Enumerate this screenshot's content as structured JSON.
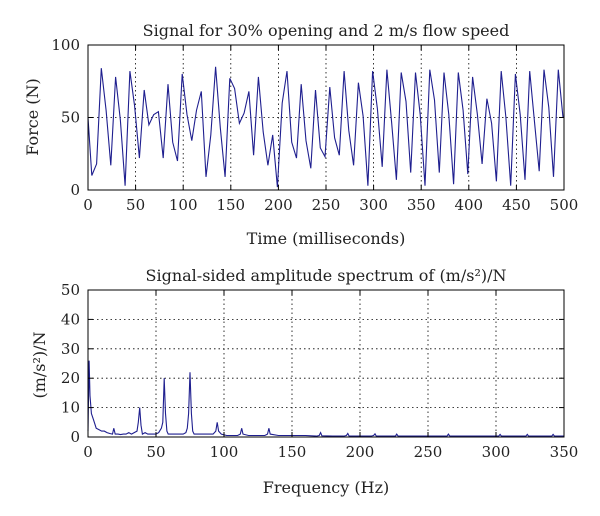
{
  "chart_data": [
    {
      "type": "line",
      "title": "Signal for 30% opening and 2 m/s flow speed",
      "xlabel": "Time (milliseconds)",
      "ylabel": "Force (N)",
      "xlim": [
        0,
        500
      ],
      "ylim": [
        0,
        100
      ],
      "xticks": [
        "0",
        "50",
        "100",
        "150",
        "200",
        "250",
        "300",
        "350",
        "400",
        "450",
        "500"
      ],
      "yticks": [
        "0",
        "50",
        "100"
      ],
      "grid": true,
      "line_color": "#1f1f8f",
      "series": [
        {
          "x": [
            0,
            4,
            9,
            14,
            19,
            24,
            29,
            34,
            39,
            44,
            49,
            54,
            59,
            64,
            69,
            74,
            79,
            84,
            89,
            94,
            99,
            104,
            109,
            114,
            119,
            124,
            129,
            134,
            139,
            144,
            149,
            154,
            159,
            164,
            169,
            174,
            179,
            184,
            189,
            194,
            199,
            204,
            209,
            214,
            219,
            224,
            229,
            234,
            239,
            244,
            249,
            254,
            259,
            264,
            269,
            274,
            279,
            284,
            289,
            294,
            299,
            304,
            309,
            314,
            319,
            324,
            329,
            334,
            339,
            344,
            349,
            354,
            359,
            364,
            369,
            374,
            379,
            384,
            389,
            394,
            399,
            404,
            409,
            414,
            419,
            424,
            429,
            434,
            439,
            444,
            449,
            454,
            459,
            464,
            469,
            474,
            479,
            484,
            489,
            494,
            499
          ],
          "y": [
            50,
            10,
            18,
            84,
            55,
            17,
            78,
            48,
            3,
            82,
            58,
            22,
            69,
            45,
            52,
            54,
            22,
            73,
            33,
            20,
            80,
            52,
            34,
            55,
            68,
            9,
            38,
            85,
            43,
            9,
            77,
            70,
            46,
            53,
            68,
            24,
            78,
            40,
            17,
            38,
            2,
            60,
            82,
            33,
            22,
            73,
            34,
            15,
            69,
            29,
            23,
            71,
            36,
            24,
            82,
            41,
            17,
            74,
            51,
            3,
            82,
            56,
            16,
            83,
            46,
            7,
            81,
            61,
            12,
            81,
            52,
            3,
            83,
            62,
            12,
            81,
            52,
            4,
            81,
            55,
            11,
            78,
            52,
            18,
            63,
            46,
            6,
            82,
            50,
            3,
            80,
            52,
            7,
            82,
            47,
            13,
            83,
            57,
            9,
            83,
            50
          ]
        }
      ]
    },
    {
      "type": "line",
      "title": "Signal-sided amplitude spectrum of (m/s²)/N",
      "xlabel": "Frequency (Hz)",
      "ylabel": "(m/s²)/N",
      "xlim": [
        0,
        350
      ],
      "ylim": [
        0,
        50
      ],
      "xticks": [
        "0",
        "50",
        "100",
        "150",
        "200",
        "250",
        "300",
        "350"
      ],
      "yticks": [
        "0",
        "10",
        "20",
        "30",
        "40",
        "50"
      ],
      "grid": true,
      "line_color": "#1f1f8f",
      "series": [
        {
          "x": [
            0,
            0.8,
            1.5,
            2.5,
            4,
            6,
            8,
            10,
            12,
            14,
            16,
            18,
            19,
            20,
            22,
            24,
            26,
            28,
            30,
            32,
            34,
            36,
            37,
            38,
            39,
            40,
            42,
            44,
            46,
            48,
            50,
            52,
            54,
            55,
            56,
            57,
            58,
            59,
            60,
            62,
            64,
            66,
            68,
            70,
            72,
            73,
            74,
            75,
            76,
            77,
            78,
            80,
            84,
            88,
            92,
            94,
            95,
            96,
            98,
            102,
            106,
            110,
            112,
            113,
            114,
            118,
            122,
            126,
            130,
            132,
            133,
            134,
            140,
            150,
            160,
            168,
            170,
            171,
            172,
            180,
            188,
            190,
            191,
            192,
            200,
            208,
            210,
            211,
            212,
            220,
            226,
            227,
            228,
            240,
            250,
            262,
            264,
            265,
            266,
            280,
            290,
            300,
            302,
            303,
            304,
            320,
            322,
            323,
            324,
            335,
            341,
            342,
            343,
            350
          ],
          "y": [
            2,
            26,
            14,
            8,
            6,
            3,
            2.5,
            2,
            2,
            1.5,
            1.2,
            1,
            3,
            1,
            1,
            0.8,
            1,
            1,
            1.5,
            1,
            1.5,
            2,
            5,
            10,
            4,
            1,
            1.5,
            1,
            1,
            1,
            1,
            1.5,
            3,
            5,
            20,
            8,
            2,
            1,
            1,
            1,
            1,
            1,
            1,
            1,
            1.5,
            3,
            8,
            22,
            8,
            2,
            1,
            1,
            1,
            1,
            1,
            2,
            5,
            2,
            1,
            0.5,
            0.5,
            0.5,
            1,
            3,
            1,
            0.5,
            0.5,
            0.5,
            0.5,
            1,
            3,
            1,
            0.5,
            0.5,
            0.5,
            0.3,
            0.5,
            1.5,
            0.4,
            0.3,
            0.3,
            0.5,
            1.2,
            0.3,
            0.3,
            0.3,
            0.5,
            1.1,
            0.3,
            0.3,
            0.3,
            1,
            0.3,
            0.3,
            0.3,
            0.3,
            0.3,
            1,
            0.3,
            0.3,
            0.3,
            0.3,
            0.3,
            0.9,
            0.3,
            0.3,
            0.3,
            0.9,
            0.3,
            0.3,
            0.3,
            0.9,
            0.3,
            0.3
          ]
        }
      ]
    }
  ]
}
